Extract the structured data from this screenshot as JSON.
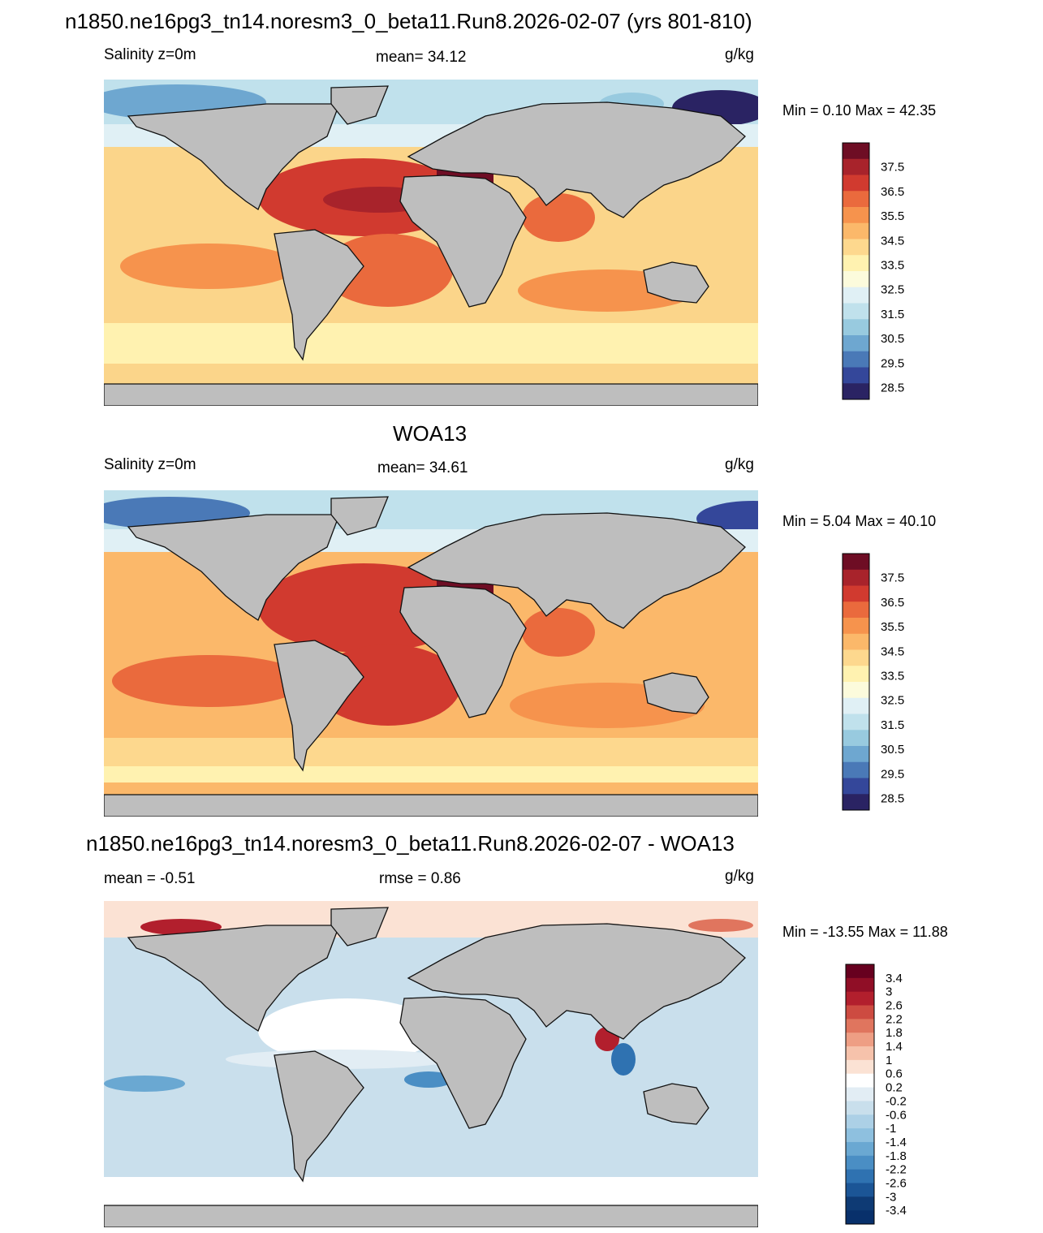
{
  "panels": [
    {
      "title": "n1850.ne16pg3_tn14.noresm3_0_beta11.Run8.2026-02-07 (yrs 801-810)",
      "left_label": "Salinity z=0m",
      "center_label": "mean=  34.12",
      "units": "g/kg",
      "minmax": "Min =   0.10 Max =  42.35",
      "colorbar_labels": [
        "37.5",
        "36.5",
        "35.5",
        "34.5",
        "33.5",
        "32.5",
        "31.5",
        "30.5",
        "29.5",
        "28.5"
      ]
    },
    {
      "title": "WOA13",
      "left_label": "Salinity z=0m",
      "center_label": "mean=  34.61",
      "units": "g/kg",
      "minmax": "Min =   5.04 Max =  40.10",
      "colorbar_labels": [
        "37.5",
        "36.5",
        "35.5",
        "34.5",
        "33.5",
        "32.5",
        "31.5",
        "30.5",
        "29.5",
        "28.5"
      ]
    },
    {
      "title": "n1850.ne16pg3_tn14.noresm3_0_beta11.Run8.2026-02-07 - WOA13",
      "left_label": "mean =  -0.51",
      "center_label": "rmse =   0.86",
      "units": "g/kg",
      "minmax": "Min = -13.55 Max =  11.88",
      "colorbar_labels": [
        "3.4",
        "3",
        "2.6",
        "2.2",
        "1.8",
        "1.4",
        "1",
        "0.6",
        "0.2",
        "-0.2",
        "-0.6",
        "-1",
        "-1.4",
        "-1.8",
        "-2.2",
        "-2.6",
        "-3",
        "-3.4"
      ]
    }
  ],
  "colors": {
    "land": "#bebebe",
    "salinity_scale": [
      "#6e0d24",
      "#a8232b",
      "#d13a2f",
      "#ea6a3d",
      "#f6934d",
      "#fbb86a",
      "#fdd88e",
      "#fff2b0",
      "#fcfbdc",
      "#e0f0f5",
      "#c0e1ec",
      "#98cadf",
      "#6ea7d0",
      "#4a79b7",
      "#34479a",
      "#2a2363"
    ],
    "difference_scale": [
      "#67001f",
      "#900e26",
      "#b21f2d",
      "#cd4b41",
      "#e0755e",
      "#ee9e84",
      "#f6c2ab",
      "#fbe2d4",
      "#ffffff",
      "#e2edf4",
      "#c9dfec",
      "#acd0e6",
      "#8ec0df",
      "#6aa8d2",
      "#4a8ec4",
      "#2f72b1",
      "#1b5596",
      "#0e3a74",
      "#08306b"
    ]
  }
}
